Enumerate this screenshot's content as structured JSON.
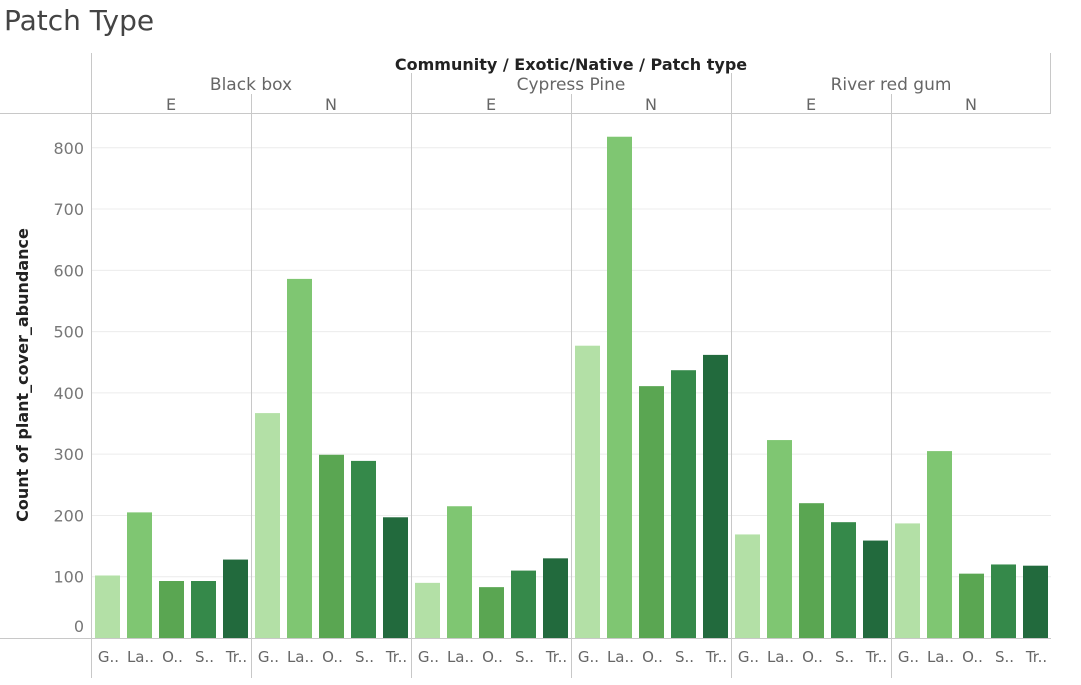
{
  "page": {
    "title": "Patch Type"
  },
  "chart_data": {
    "type": "bar",
    "header": "Community / Exotic/Native / Patch type",
    "ylabel": "Count of plant_cover_abundance",
    "ylim": [
      0,
      850
    ],
    "yticks": [
      0,
      100,
      200,
      300,
      400,
      500,
      600,
      700,
      800
    ],
    "grid": true,
    "legend": "none",
    "category_labels": [
      "G..",
      "La..",
      "O..",
      "S..",
      "Tr.."
    ],
    "colors": [
      "#b3e0a6",
      "#7fc672",
      "#5aa652",
      "#35894a",
      "#226a3d"
    ],
    "groups": [
      {
        "community": "Black box",
        "type": "E",
        "values": [
          102,
          205,
          93,
          93,
          128
        ]
      },
      {
        "community": "Black box",
        "type": "N",
        "values": [
          367,
          586,
          299,
          289,
          197
        ]
      },
      {
        "community": "Cypress Pine",
        "type": "E",
        "values": [
          90,
          215,
          83,
          110,
          130
        ]
      },
      {
        "community": "Cypress Pine",
        "type": "N",
        "values": [
          477,
          818,
          411,
          437,
          462
        ]
      },
      {
        "community": "River red gum",
        "type": "E",
        "values": [
          169,
          323,
          220,
          189,
          159
        ]
      },
      {
        "community": "River red gum",
        "type": "N",
        "values": [
          187,
          305,
          105,
          120,
          118
        ]
      }
    ],
    "communities": [
      "Black box",
      "Cypress Pine",
      "River red gum"
    ]
  }
}
